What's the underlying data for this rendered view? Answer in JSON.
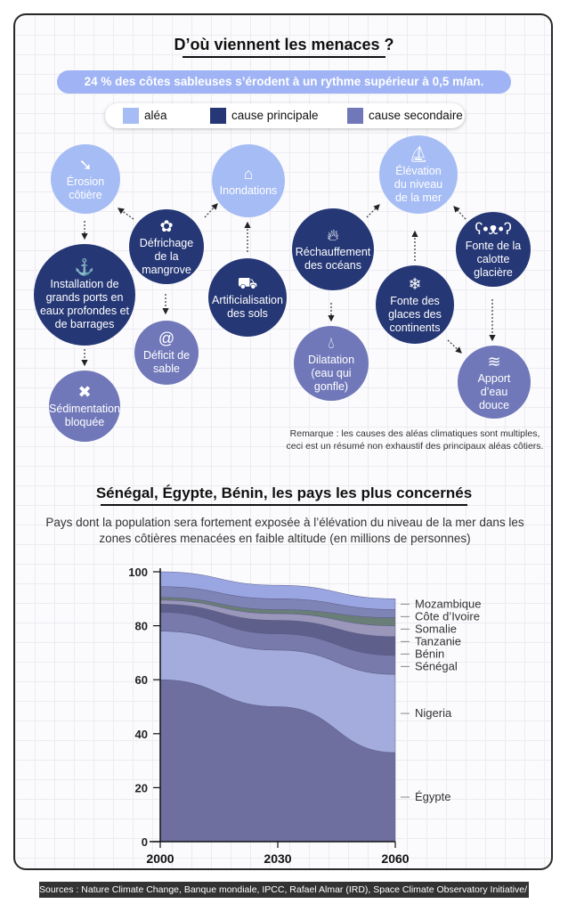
{
  "header": {
    "title": "D’où viennent les menaces ?",
    "banner": "24 % des côtes sableuses s’érodent à un rythme supérieur à 0,5 m/an."
  },
  "legend": [
    {
      "label": "aléa",
      "color": "#a6bcf5"
    },
    {
      "label": "cause principale",
      "color": "#253775"
    },
    {
      "label": "cause secondaire",
      "color": "#7078b9"
    }
  ],
  "nodes": {
    "erosion": "Érosion côtière",
    "ports": "Installation de grands ports en eaux profondes et de barrages",
    "sedimentation": "Sédimentation bloquée",
    "defrichage": "Défrichage de la mangrove",
    "deficit": "Déficit de sable",
    "inondations": "Inondations",
    "artificialisation": "Artificialisation des sols",
    "rechauffement": "Réchauffement des océans",
    "dilatation": "Dilatation (eau qui gonfle)",
    "elevation": "Élévation du niveau de la mer",
    "glaces": "Fonte des glaces des continents",
    "calotte": "Fonte de la calotte glacière",
    "apport": "Apport d’eau douce"
  },
  "remark": "Remarque : les causes des aléas climatiques sont multiples, ceci est un résumé non exhaustif des principaux aléas côtiers.",
  "section2": {
    "title": "Sénégal, Égypte, Bénin, les pays les plus concernés",
    "subtitle": "Pays dont la population sera fortement exposée à l’élévation du niveau de la mer dans les zones côtières menacées en faible altitude (en millions de personnes)"
  },
  "chart_data": {
    "type": "area",
    "stacked": true,
    "x": [
      2000,
      2030,
      2060
    ],
    "xticks": [
      "2000",
      "2030",
      "2060"
    ],
    "ylim": [
      0,
      100
    ],
    "yticks": [
      "0",
      "20",
      "40",
      "60",
      "80",
      "100"
    ],
    "legend_position": "right",
    "series": [
      {
        "name": "Égypte",
        "values": [
          60,
          50,
          33
        ],
        "color": "#6e6f9e"
      },
      {
        "name": "Nigeria",
        "values": [
          18,
          21,
          29
        ],
        "color": "#a3acdd"
      },
      {
        "name": "Sénégal",
        "values": [
          7,
          6,
          7
        ],
        "color": "#777aaa"
      },
      {
        "name": "Bénin",
        "values": [
          3,
          5,
          7
        ],
        "color": "#5e5f8a"
      },
      {
        "name": "Tanzanie",
        "values": [
          1.5,
          2.5,
          4
        ],
        "color": "#9a97bb"
      },
      {
        "name": "Somalie",
        "values": [
          1,
          1.5,
          3
        ],
        "color": "#6a7e78"
      },
      {
        "name": "Côte d’Ivoire",
        "values": [
          4,
          4,
          3
        ],
        "color": "#7f84b6"
      },
      {
        "name": "Mozambique",
        "values": [
          5.5,
          5,
          4
        ],
        "color": "#9aa6e2"
      }
    ]
  },
  "sources": "Sources : Nature Climate Change, Banque mondiale, IPCC, Rafael Almar (IRD), Space Climate Observatory Initiative/ WACA-VAR"
}
